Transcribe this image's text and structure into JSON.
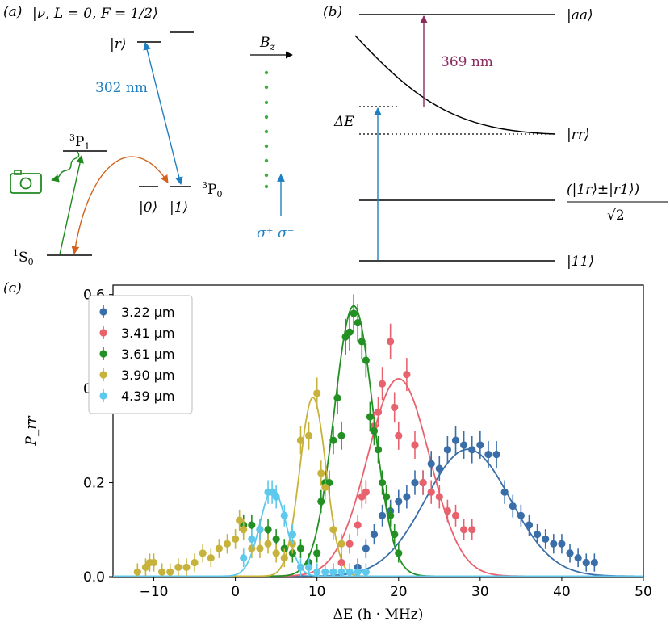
{
  "panel_a": {
    "tag": "(a)",
    "ket_top": "|ν, L = 0, F = 1/2⟩",
    "ket_r": "|r⟩",
    "wavelength": "302 nm",
    "p1_sup": "3",
    "p1_main": "P",
    "p1_sub": "1",
    "p0_sup": "3",
    "p0_main": "P",
    "p0_sub": "0",
    "s0_sup": "1",
    "s0_main": "S",
    "s0_sub": "0",
    "ket_0": "|0⟩",
    "ket_1": "|1⟩",
    "field": "B",
    "field_sub": "z",
    "pol": "σ⁺ σ⁻",
    "colors": {
      "blue": "#1f7fc1",
      "green": "#1e8a1e",
      "orange": "#d3611a",
      "dots": "#3cae3c"
    },
    "icons": [
      "camera-icon"
    ]
  },
  "panel_b": {
    "tag": "(b)",
    "ket_aa": "|aa⟩",
    "ket_rr": "|rr⟩",
    "ket_sym_num": "(|1r⟩±|r1⟩)",
    "ket_sym_den": "√2",
    "ket_11": "|11⟩",
    "delta": "ΔE",
    "wavelength": "369 nm",
    "colors": {
      "blue": "#1f7fc1",
      "purple": "#8c2a5e"
    }
  },
  "panel_c": {
    "tag": "(c)"
  },
  "chart_data": {
    "type": "scatter",
    "xlabel": "ΔE (h · MHz)",
    "ylabel": "P_rr",
    "xlim": [
      -15,
      50
    ],
    "ylim": [
      0,
      0.62
    ],
    "xticks": [
      -10,
      0,
      10,
      20,
      30,
      40,
      50
    ],
    "yticks": [
      "0.0",
      "0.2",
      "0.4",
      "0.6"
    ],
    "legend_position": "top-left",
    "series": [
      {
        "name": "3.22 μm",
        "color": "#3a6ea8",
        "fit": {
          "A": 0.27,
          "mu": 28.5,
          "sigma": 5.2
        },
        "x": [
          15,
          16,
          17,
          18,
          19,
          20,
          21,
          22,
          23,
          24,
          25,
          26,
          27,
          28,
          29,
          30,
          31,
          32,
          33,
          34,
          35,
          36,
          37,
          38,
          39,
          40,
          41,
          42,
          43,
          44
        ],
        "y": [
          0.02,
          0.06,
          0.09,
          0.13,
          0.14,
          0.16,
          0.17,
          0.2,
          0.2,
          0.24,
          0.23,
          0.27,
          0.29,
          0.28,
          0.27,
          0.28,
          0.26,
          0.26,
          0.18,
          0.15,
          0.13,
          0.11,
          0.09,
          0.08,
          0.07,
          0.07,
          0.05,
          0.04,
          0.03,
          0.03
        ]
      },
      {
        "name": "3.41 μm",
        "color": "#e8626e",
        "fit": {
          "A": 0.42,
          "mu": 20.0,
          "sigma": 3.8
        },
        "x": [
          12,
          13,
          14,
          15,
          15.5,
          16,
          17,
          17.5,
          18,
          19,
          19.5,
          20,
          21,
          22,
          23,
          24,
          25,
          26,
          27,
          28,
          29
        ],
        "y": [
          0.01,
          0.03,
          0.07,
          0.11,
          0.17,
          0.18,
          0.32,
          0.35,
          0.41,
          0.5,
          0.36,
          0.3,
          0.43,
          0.28,
          0.2,
          0.18,
          0.17,
          0.14,
          0.13,
          0.1,
          0.1
        ]
      },
      {
        "name": "3.61 μm",
        "color": "#239023",
        "fit": {
          "A": 0.575,
          "mu": 14.5,
          "sigma": 2.4
        },
        "x": [
          1,
          2,
          3,
          4,
          5,
          6,
          7,
          8,
          9,
          10,
          10.5,
          11,
          11.5,
          12,
          12.5,
          13,
          13.5,
          14,
          14.5,
          15,
          15.5,
          16,
          16.5,
          17,
          17.5,
          18,
          18.5,
          19,
          19.5,
          20
        ],
        "y": [
          0.11,
          0.11,
          0.1,
          0.1,
          0.08,
          0.06,
          0.05,
          0.06,
          0.03,
          0.05,
          0.16,
          0.2,
          0.2,
          0.29,
          0.38,
          0.3,
          0.51,
          0.52,
          0.56,
          0.54,
          0.5,
          0.46,
          0.34,
          0.31,
          0.27,
          0.2,
          0.17,
          0.13,
          0.09,
          0.05
        ]
      },
      {
        "name": "3.90 μm",
        "color": "#c7b33b",
        "fit": {
          "A": 0.38,
          "mu": 9.5,
          "sigma": 1.6
        },
        "x": [
          -12,
          -11,
          -10.5,
          -10,
          -9,
          -8,
          -7,
          -6,
          -5,
          -4,
          -3,
          -2,
          -1,
          0,
          0.5,
          1,
          2,
          3,
          4,
          5,
          6,
          7,
          8,
          9,
          10,
          10.5,
          11,
          12,
          13
        ],
        "y": [
          0.01,
          0.02,
          0.03,
          0.03,
          0.01,
          0.01,
          0.02,
          0.02,
          0.03,
          0.05,
          0.04,
          0.06,
          0.07,
          0.08,
          0.12,
          0.1,
          0.06,
          0.06,
          0.07,
          0.05,
          0.04,
          0.07,
          0.29,
          0.3,
          0.39,
          0.22,
          0.19,
          0.1,
          0.07
        ]
      },
      {
        "name": "4.39 μm",
        "color": "#5ec8ed",
        "fit": {
          "A": 0.185,
          "mu": 4.6,
          "sigma": 1.6
        },
        "x": [
          1,
          2,
          3,
          4,
          4.5,
          5,
          6,
          7,
          8,
          9,
          10,
          11,
          12,
          13,
          14,
          15,
          16
        ],
        "y": [
          0.04,
          0.08,
          0.1,
          0.18,
          0.18,
          0.17,
          0.13,
          0.09,
          0.02,
          0.02,
          0.01,
          0.01,
          0.01,
          0.01,
          0.01,
          0.01,
          0.01
        ]
      }
    ]
  }
}
